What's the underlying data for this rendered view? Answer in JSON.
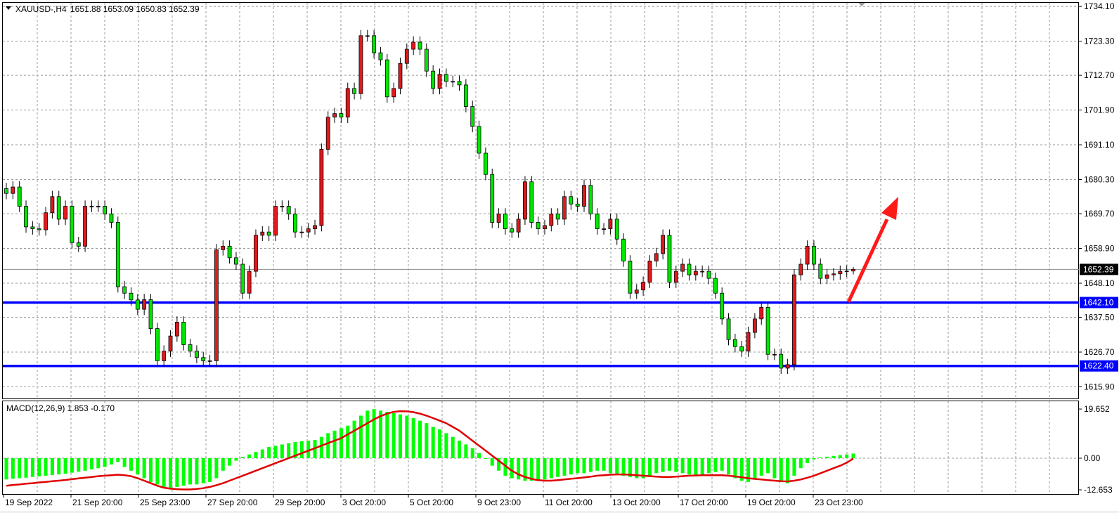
{
  "header": {
    "symbol": "XAUUSD-,H4",
    "ohlc": "1651.88 1653.09 1650.83 1652.39"
  },
  "macd_header": {
    "label": "MACD(12,26,9) 1.853 -0.170"
  },
  "colors": {
    "bull": "#e0191d",
    "bear": "#00e600",
    "support_line": "#0000ff",
    "arrow": "#ff1a1a",
    "histogram": "#00ff00",
    "signal": "#e00000",
    "current_price_label_bg": "#000000"
  },
  "chart_data": [
    {
      "type": "candlestick",
      "title": "XAUUSD-,H4",
      "ylim": [
        1612,
        1736
      ],
      "price_ticks": [
        "1734.10",
        "1723.30",
        "1712.70",
        "1701.90",
        "1691.10",
        "1680.30",
        "1669.70",
        "1658.90",
        "1648.10",
        "1637.50",
        "1626.70",
        "1615.90"
      ],
      "time_ticks": [
        "19 Sep 2022",
        "21 Sep 20:00",
        "25 Sep 23:00",
        "27 Sep 20:00",
        "29 Sep 20:00",
        "3 Oct 20:00",
        "5 Oct 20:00",
        "9 Oct 23:00",
        "11 Oct 20:00",
        "13 Oct 20:00",
        "17 Oct 20:00",
        "19 Oct 20:00",
        "23 Oct 23:00"
      ],
      "grid": true,
      "close": [
        1676,
        1678,
        1672,
        1665.6,
        1665,
        1664.7,
        1670,
        1675,
        1668,
        1672,
        1660.7,
        1659.6,
        1672,
        1672,
        1672,
        1669.6,
        1667,
        1647,
        1645,
        1642.9,
        1640,
        1643,
        1634,
        1624,
        1627,
        1631.7,
        1636,
        1629,
        1627,
        1625,
        1624,
        1624,
        1658.5,
        1659.6,
        1656,
        1654,
        1645,
        1651.8,
        1663,
        1664,
        1663,
        1672,
        1672,
        1669.6,
        1664,
        1664,
        1665,
        1666,
        1689.7,
        1699.7,
        1700.8,
        1699.7,
        1708.6,
        1707,
        1725,
        1725,
        1719.7,
        1717.5,
        1706,
        1708.6,
        1716.4,
        1720.8,
        1723,
        1720.8,
        1714,
        1708.6,
        1713,
        1710.8,
        1710.8,
        1709.7,
        1703,
        1696.8,
        1688.5,
        1681.9,
        1667,
        1669.6,
        1665,
        1664,
        1668,
        1679.6,
        1667,
        1665,
        1666,
        1669.6,
        1668,
        1675,
        1672.7,
        1672,
        1678.5,
        1669.6,
        1665,
        1665,
        1668,
        1661.8,
        1655,
        1645,
        1646,
        1648.4,
        1655,
        1657.3,
        1663,
        1648.4,
        1651.8,
        1654,
        1650.7,
        1651.8,
        1651.8,
        1649.6,
        1645,
        1637,
        1630.6,
        1628.4,
        1627,
        1632.8,
        1637,
        1640.6,
        1626,
        1626,
        1621.7,
        1622.8,
        1650.7,
        1654,
        1659.6,
        1654,
        1649.6,
        1650.7,
        1651,
        1651.8,
        1651.88,
        1652.39
      ],
      "last_candle": {
        "open": 1651.88,
        "high": 1653.09,
        "low": 1650.83,
        "close": 1652.39
      },
      "current_price": {
        "value": 1652.39,
        "label": "1652.39"
      },
      "horizontal_lines": [
        {
          "value": 1642.1,
          "label": "1642.10"
        },
        {
          "value": 1622.4,
          "label": "1622.40"
        }
      ],
      "annotation": {
        "type": "arrow",
        "direction": "up",
        "from_price": 1642.1,
        "to_price": 1676.0
      }
    },
    {
      "type": "bar+line",
      "title": "MACD(12,26,9)",
      "ylim": [
        -12.653,
        19.652
      ],
      "value_ticks": [
        "19.652",
        "0.00",
        "-12.653"
      ],
      "histogram": [
        -8.5,
        -8.2,
        -8,
        -7.8,
        -7.5,
        -7.3,
        -7,
        -6.8,
        -6.5,
        -6.2,
        -5.8,
        -5.4,
        -5,
        -4.5,
        -4,
        -3.5,
        -2.5,
        -1.5,
        -3.5,
        -5,
        -6.5,
        -8,
        -9.5,
        -10.5,
        -11.5,
        -12,
        -11.5,
        -11,
        -10.5,
        -10.5,
        -10,
        -9.5,
        -8,
        -5,
        -3,
        -1,
        0.5,
        1.5,
        2.5,
        3.5,
        4.5,
        5,
        5.5,
        6,
        6.5,
        6.8,
        7,
        7.3,
        8.5,
        10,
        11,
        12,
        13,
        15,
        17,
        19,
        19.6,
        19,
        18.5,
        18,
        17.5,
        17,
        16,
        15,
        14,
        12.5,
        11.5,
        10,
        8.5,
        7,
        5.5,
        4,
        2,
        0,
        -3,
        -5,
        -7,
        -8,
        -8.5,
        -9,
        -9,
        -9,
        -8.5,
        -8,
        -7.5,
        -7,
        -6.5,
        -6,
        -6,
        -5.5,
        -5,
        -5,
        -6,
        -6.5,
        -7,
        -7.5,
        -8,
        -8,
        -7,
        -6,
        -5.5,
        -5,
        -5.5,
        -6,
        -6.5,
        -7,
        -7,
        -6,
        -5.5,
        -5,
        -6.5,
        -8,
        -9,
        -9.5,
        -8,
        -7,
        -6,
        -8,
        -9.5,
        -10,
        -7,
        -4,
        -2,
        -0.5,
        0.3,
        0.6,
        0.9,
        1.2,
        1.5,
        1.853
      ],
      "signal": [
        -11,
        -10.7,
        -10.5,
        -10.2,
        -10,
        -9.7,
        -9.5,
        -9.2,
        -9,
        -8.7,
        -8.4,
        -8.1,
        -7.8,
        -7.5,
        -7.2,
        -7,
        -6.8,
        -6.6,
        -6.8,
        -7.2,
        -8,
        -9,
        -10,
        -11,
        -11.8,
        -12.2,
        -12.4,
        -12.5,
        -12.5,
        -12.3,
        -12,
        -11.5,
        -10.8,
        -10,
        -9,
        -8,
        -7,
        -6,
        -5,
        -4,
        -3,
        -2,
        -1,
        0,
        1,
        2,
        3,
        4,
        5,
        6,
        7,
        8,
        9.5,
        11,
        12.5,
        14,
        15.5,
        16.8,
        17.8,
        18.5,
        18.8,
        18.7,
        18.4,
        17.8,
        17,
        16,
        15,
        14,
        12.5,
        11,
        9,
        7,
        5,
        3,
        1,
        -1,
        -3,
        -5,
        -6.5,
        -7.5,
        -8.3,
        -8.8,
        -9,
        -9,
        -8.8,
        -8.5,
        -8.2,
        -8,
        -7.7,
        -7.4,
        -7,
        -6.8,
        -6.6,
        -6.5,
        -6.5,
        -6.6,
        -6.8,
        -7,
        -7.2,
        -7.4,
        -7.5,
        -7.5,
        -7.4,
        -7.2,
        -7,
        -6.9,
        -6.8,
        -6.8,
        -6.8,
        -6.8,
        -7,
        -7.3,
        -7.6,
        -8,
        -8.3,
        -8.5,
        -8.8,
        -9,
        -9.2,
        -9.3,
        -9,
        -8.5,
        -7.8,
        -7,
        -6,
        -5,
        -4,
        -3,
        -1.8,
        -0.17
      ]
    }
  ]
}
